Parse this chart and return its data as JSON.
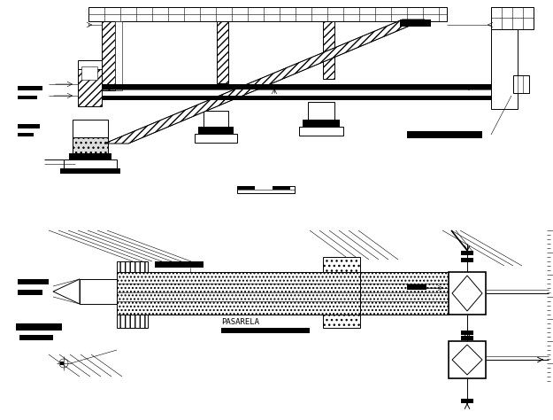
{
  "bg_color": "#ffffff",
  "line_color": "#000000",
  "fig_width": 6.25,
  "fig_height": 4.74,
  "dpi": 100,
  "pasarela_label": "PASARELA"
}
